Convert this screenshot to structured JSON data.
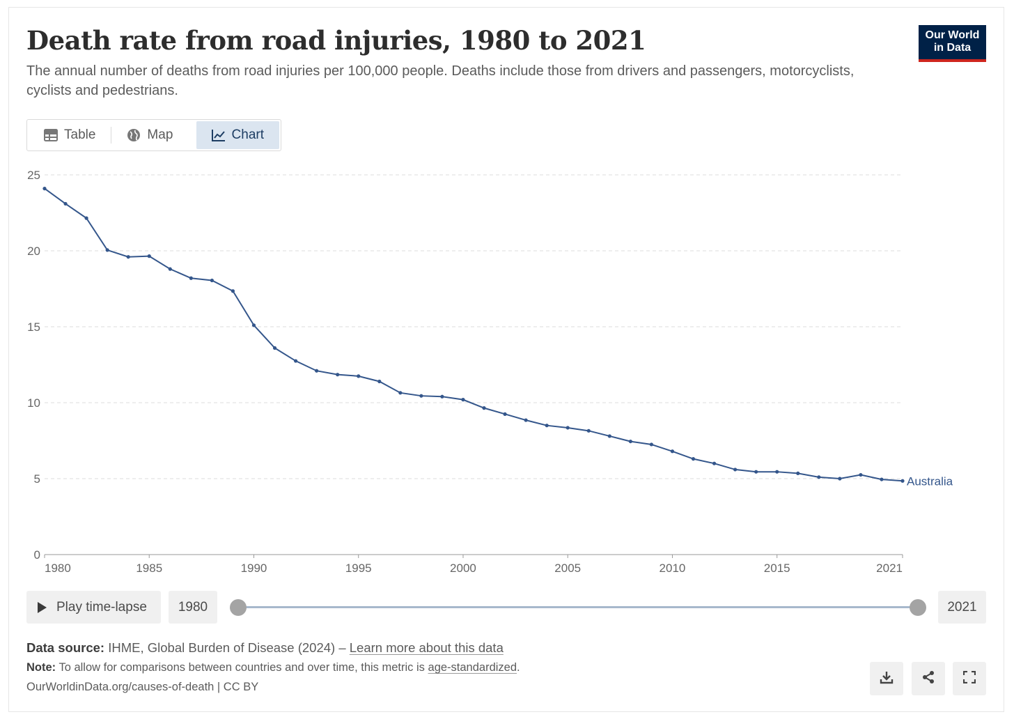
{
  "header": {
    "title": "Death rate from road injuries, 1980 to 2021",
    "subtitle": "The annual number of deaths from road injuries per 100,000 people. Deaths include those from drivers and passengers, motorcyclists, cyclists and pedestrians.",
    "logo_line1": "Our World",
    "logo_line2": "in Data"
  },
  "tabs": [
    {
      "label": "Table",
      "icon": "table-icon"
    },
    {
      "label": "Map",
      "icon": "globe-icon"
    },
    {
      "label": "Chart",
      "icon": "line-chart-icon",
      "active": true
    }
  ],
  "chart_data": {
    "type": "line",
    "title": "Death rate from road injuries, 1980 to 2021",
    "xlabel": "",
    "ylabel": "",
    "xlim": [
      1980,
      2021
    ],
    "ylim": [
      0,
      25
    ],
    "yticks": [
      0,
      5,
      10,
      15,
      20,
      25
    ],
    "xticks": [
      "1980",
      "1985",
      "1990",
      "1995",
      "2000",
      "2005",
      "2010",
      "2015",
      "2021"
    ],
    "grid": "horizontal dashed",
    "line_color": "#34568b",
    "series": [
      {
        "name": "Australia",
        "x": [
          1980,
          1981,
          1982,
          1983,
          1984,
          1985,
          1986,
          1987,
          1988,
          1989,
          1990,
          1991,
          1992,
          1993,
          1994,
          1995,
          1996,
          1997,
          1998,
          1999,
          2000,
          2001,
          2002,
          2003,
          2004,
          2005,
          2006,
          2007,
          2008,
          2009,
          2010,
          2011,
          2012,
          2013,
          2014,
          2015,
          2016,
          2017,
          2018,
          2019,
          2020,
          2021
        ],
        "values": [
          24.1,
          23.1,
          22.15,
          20.05,
          19.6,
          19.65,
          18.8,
          18.2,
          18.05,
          17.35,
          15.1,
          13.6,
          12.75,
          12.1,
          11.85,
          11.75,
          11.4,
          10.65,
          10.45,
          10.4,
          10.2,
          9.65,
          9.25,
          8.85,
          8.5,
          8.35,
          8.15,
          7.8,
          7.45,
          7.25,
          6.8,
          6.3,
          6.0,
          5.6,
          5.45,
          5.45,
          5.35,
          5.1,
          5.0,
          5.25,
          4.95,
          4.85
        ]
      }
    ]
  },
  "timeline": {
    "play_label": "Play time-lapse",
    "start_year": "1980",
    "end_year": "2021"
  },
  "footer": {
    "source_label": "Data source:",
    "source_text": " IHME, Global Burden of Disease (2024) – ",
    "source_link": "Learn more about this data",
    "note_label": "Note:",
    "note_text": " To allow for comparisons between countries and over time, this metric is ",
    "note_link": "age-standardized",
    "note_end": ".",
    "credit": "OurWorldinData.org/causes-of-death | CC BY"
  },
  "actions": [
    {
      "icon": "download-icon"
    },
    {
      "icon": "share-icon"
    },
    {
      "icon": "fullscreen-icon"
    }
  ]
}
